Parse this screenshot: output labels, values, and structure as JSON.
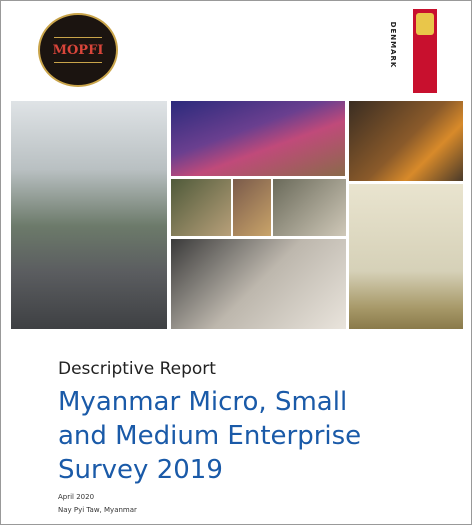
{
  "header": {
    "logo_text": "MOPFI",
    "partner": "DENMARK"
  },
  "report": {
    "kind": "Descriptive Report",
    "title_lines": [
      "Myanmar Micro, Small",
      "and Medium Enterprise",
      "Survey 2019"
    ],
    "date": "April 2020",
    "place": "Nay Pyi Taw, Myanmar"
  }
}
